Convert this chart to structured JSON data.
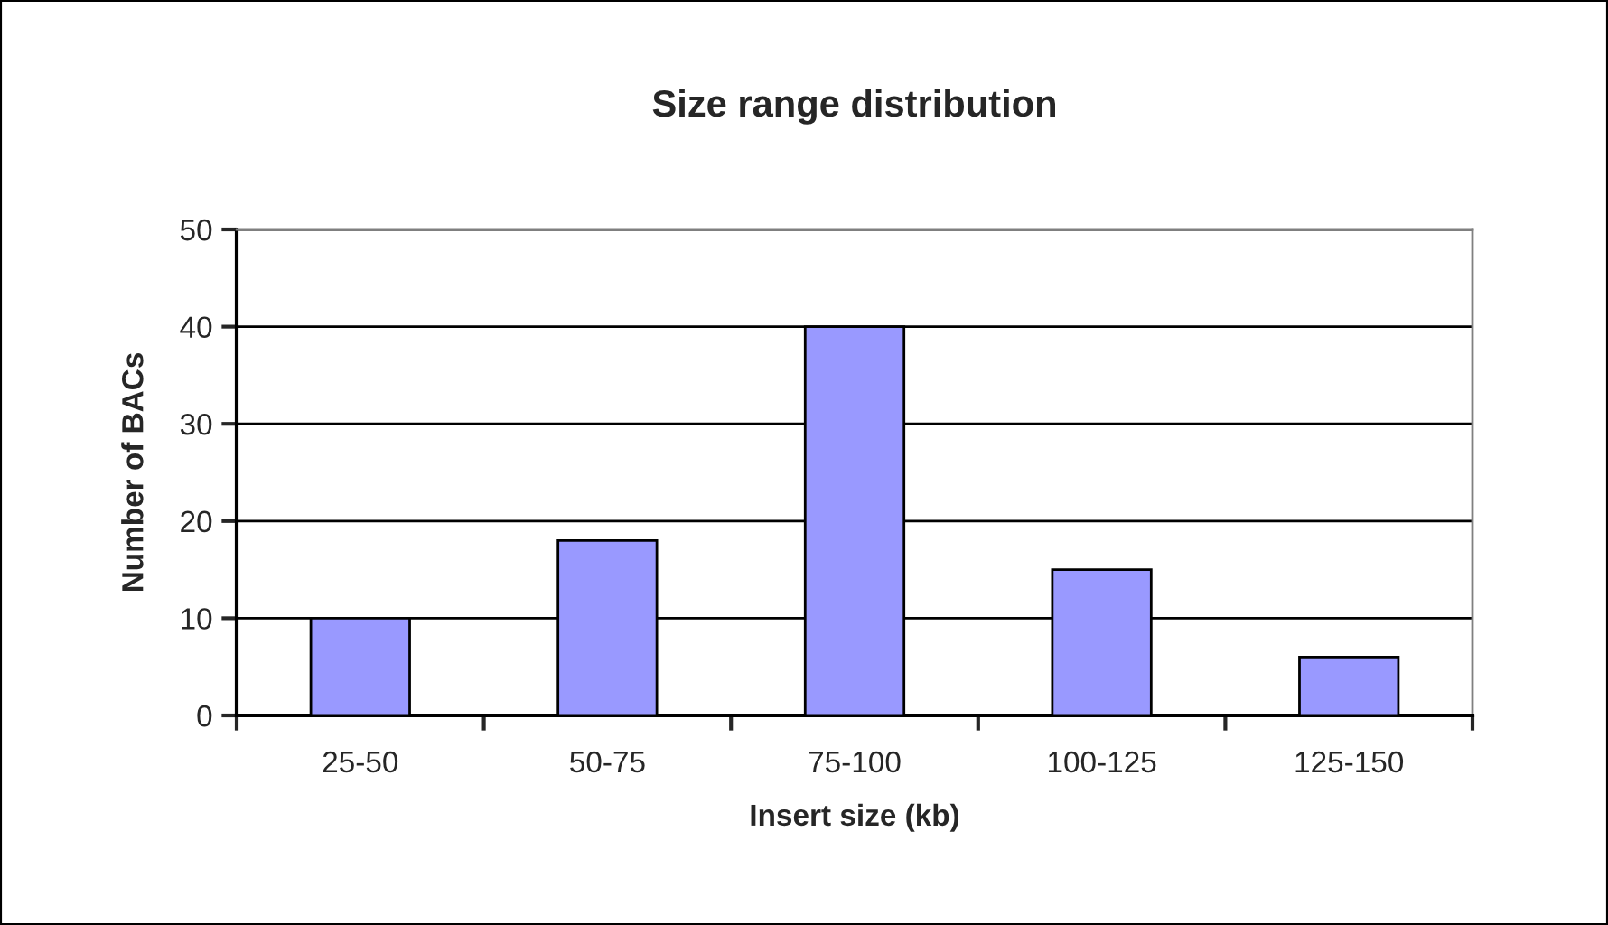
{
  "chart_data": {
    "type": "bar",
    "title": "Size range distribution",
    "xlabel": "Insert size (kb)",
    "ylabel": "Number of BACs",
    "categories": [
      "25-50",
      "50-75",
      "75-100",
      "100-125",
      "125-150"
    ],
    "values": [
      10,
      18,
      40,
      15,
      6
    ],
    "color": "#9999ff",
    "ylim": [
      0,
      50
    ],
    "yticks": [
      0,
      10,
      20,
      30,
      40,
      50
    ],
    "grid": "y",
    "legend": false
  }
}
